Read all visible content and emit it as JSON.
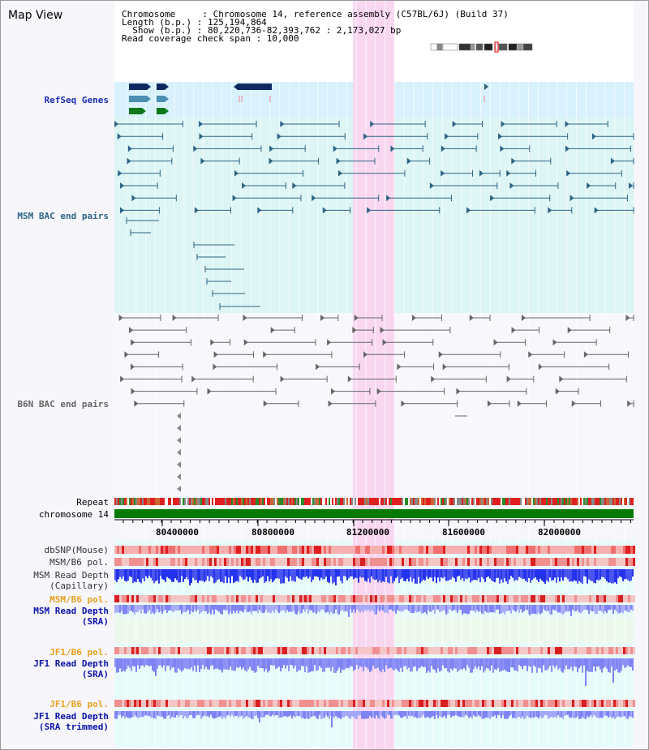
{
  "title": "Map View",
  "info": {
    "chromosome": "Chromosome     : Chromosome 14, reference assembly (C57BL/6J) (Build 37)",
    "length": "Length (b.p.) : 125,194,864",
    "show": "  Show (b.p.) : 80,220,736-82,393,762 : 2,173,027 bp",
    "span": "Read coverage check span : 10,000"
  },
  "tracks": {
    "refseq": "RefSeq Genes",
    "msm_bac": "MSM BAC end pairs",
    "b6n_bac": "B6N BAC end pairs",
    "repeat": "Repeat",
    "chromosome": "chromosome 14",
    "dbsnp": "dbSNP(Mouse)",
    "msm_b6_pol": "MSM/B6 pol.",
    "msm_depth_cap": "MSM Read Depth\n(Capillary)",
    "msm_b6_pol2": "MSM/B6 pol.",
    "msm_depth_sra": "MSM Read Depth\n(SRA)",
    "jf1_b6_pol": "JF1/B6 pol.",
    "jf1_depth_sra": "JF1 Read Depth\n(SRA)",
    "jf1_b6_pol2": "JF1/B6 pol.",
    "jf1_depth_trim": "JF1 Read Depth\n(SRA trimmed)"
  },
  "axis": {
    "ticks": [
      "80400000",
      "80800000",
      "81200000",
      "81600000",
      "82000000"
    ]
  },
  "colors": {
    "highlight": "#f9d7f1",
    "refseq_bg": "#d8f1fc",
    "chromosome_bar": "#067a06",
    "depth_blue": "#2433ee",
    "depth_light": "#7f84f5",
    "snp_red": "#f04848"
  }
}
